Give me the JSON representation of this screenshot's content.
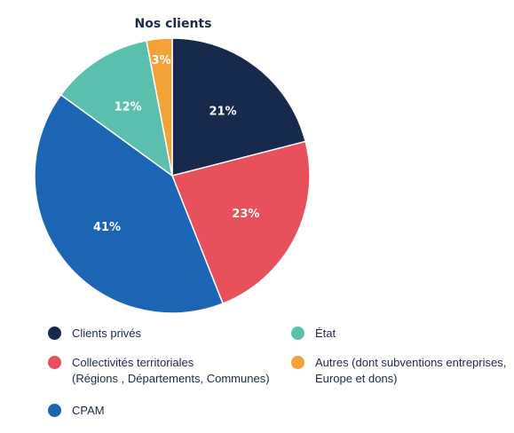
{
  "chart_data": {
    "type": "pie",
    "title": "Nos clients",
    "labels": [
      "Clients privés",
      "Collectivités territoriales",
      "CPAM",
      "État",
      "Autres"
    ],
    "values": [
      21,
      23,
      41,
      12,
      3
    ],
    "value_labels": [
      "21%",
      "23%",
      "41%",
      "12%",
      "3%"
    ],
    "colors": [
      "#172a4e",
      "#e8505b",
      "#1c64b4",
      "#5bbfae",
      "#f3a238"
    ],
    "legend": [
      {
        "lines": [
          "Clients privés"
        ],
        "color": "#172a4e"
      },
      {
        "lines": [
          "Collectivités territoriales",
          "(Régions , Départements, Communes)"
        ],
        "color": "#e8505b"
      },
      {
        "lines": [
          "CPAM"
        ],
        "color": "#1c64b4"
      },
      {
        "lines": [
          "État"
        ],
        "color": "#5bbfae"
      },
      {
        "lines": [
          "Autres (dont subventions entreprises,",
          "Europe et dons)"
        ],
        "color": "#f3a238"
      }
    ],
    "legend_placement": "bottom"
  }
}
